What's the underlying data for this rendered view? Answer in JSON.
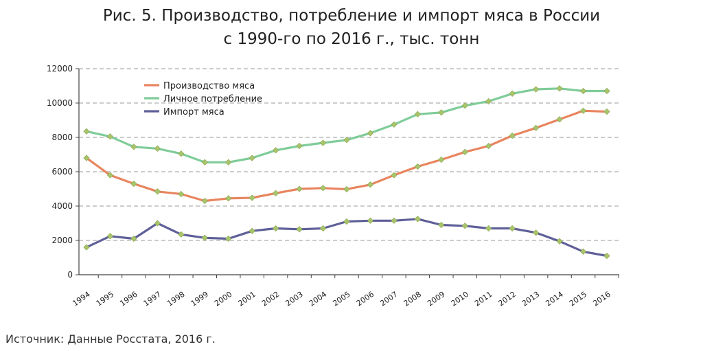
{
  "chart_data": {
    "type": "line",
    "title_line1": "Рис. 5. Производство, потребление и импорт мяса в России",
    "title_line2": "с 1990-го по 2016 г., тыс. тонн",
    "xlabel": "",
    "ylabel": "",
    "ylim": [
      0,
      12000
    ],
    "y_ticks": [
      0,
      2000,
      4000,
      6000,
      8000,
      10000,
      12000
    ],
    "grid": "horizontal dashed",
    "legend_position": "top-left",
    "categories": [
      "1994",
      "1995",
      "1996",
      "1997",
      "1998",
      "1999",
      "2000",
      "2001",
      "2002",
      "2003",
      "2004",
      "2005",
      "2006",
      "2007",
      "2008",
      "2009",
      "2010",
      "2011",
      "2012",
      "2013",
      "2014",
      "2015",
      "2016"
    ],
    "series": [
      {
        "name": "Производство мяса",
        "color": "#e8855f",
        "values": [
          6800,
          5800,
          5300,
          4850,
          4700,
          4300,
          4450,
          4480,
          4750,
          5000,
          5050,
          4980,
          5250,
          5800,
          6300,
          6700,
          7150,
          7500,
          8100,
          8550,
          9050,
          9550,
          9500
        ]
      },
      {
        "name": "Личное потребление",
        "color": "#7fcc99",
        "values": [
          8350,
          8050,
          7450,
          7350,
          7050,
          6550,
          6550,
          6800,
          7250,
          7500,
          7680,
          7850,
          8250,
          8750,
          9350,
          9450,
          9850,
          10100,
          10550,
          10800,
          10850,
          10700,
          10700
        ]
      },
      {
        "name": "Импорт мяса",
        "color": "#5f5f99",
        "values": [
          1600,
          2250,
          2100,
          3000,
          2350,
          2150,
          2100,
          2550,
          2700,
          2650,
          2700,
          3100,
          3150,
          3150,
          3250,
          2900,
          2850,
          2700,
          2700,
          2450,
          1950,
          1350,
          1100
        ]
      }
    ],
    "marker_color": "#a8c56a"
  },
  "source": "Источник: Данные Росстата, 2016 г."
}
